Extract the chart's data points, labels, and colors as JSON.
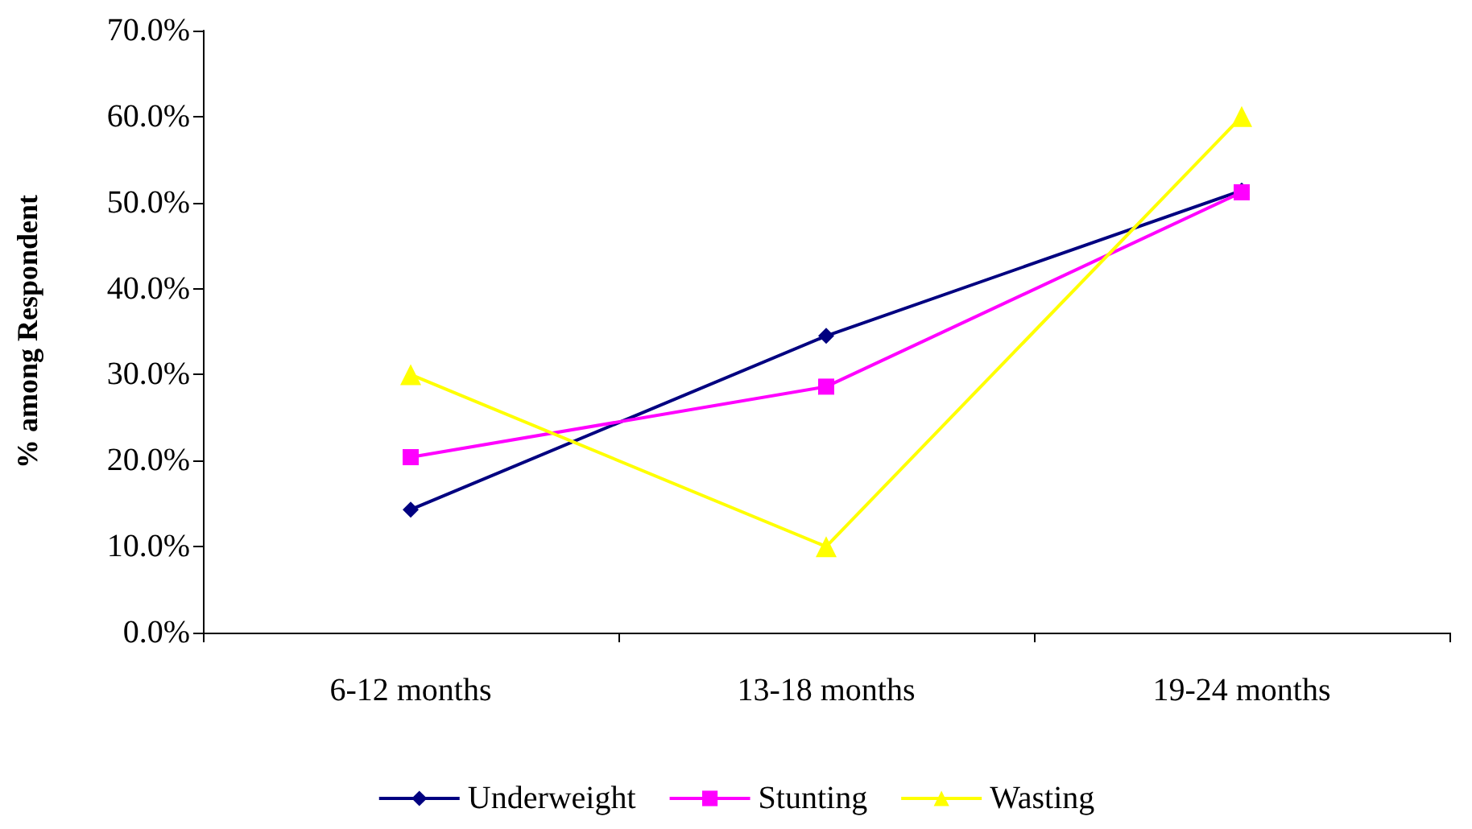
{
  "chart_data": {
    "type": "line",
    "ylabel": "% among Respondent",
    "categories": [
      "6-12 months",
      "13-18 months",
      "19-24 months"
    ],
    "series": [
      {
        "name": "Underweight",
        "color": "#000080",
        "marker": "diamond",
        "values": [
          14.3,
          34.5,
          51.4
        ]
      },
      {
        "name": "Stunting",
        "color": "#ff00ff",
        "marker": "square",
        "values": [
          20.4,
          28.6,
          51.2
        ]
      },
      {
        "name": "Wasting",
        "color": "#ffff00",
        "marker": "triangle",
        "values": [
          30.0,
          10.0,
          60.0
        ]
      }
    ],
    "ylim": [
      0,
      70
    ],
    "yticks": [
      {
        "value": 0,
        "label": "0.0%"
      },
      {
        "value": 10,
        "label": "10.0%"
      },
      {
        "value": 20,
        "label": "20.0%"
      },
      {
        "value": 30,
        "label": "30.0%"
      },
      {
        "value": 40,
        "label": "40.0%"
      },
      {
        "value": 50,
        "label": "50.0%"
      },
      {
        "value": 60,
        "label": "60.0%"
      },
      {
        "value": 70,
        "label": "70.0%"
      }
    ],
    "grid": false,
    "legend": "bottom",
    "line_style": "solid"
  }
}
